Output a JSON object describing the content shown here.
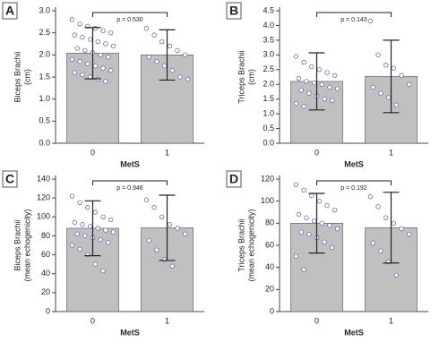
{
  "chart_data": [
    {
      "type": "bar",
      "panel": "A",
      "ylabel": [
        "Biceps Brachii",
        "(cm)"
      ],
      "xlabel": "MetS",
      "categories": [
        "0",
        "1"
      ],
      "values": [
        2.04,
        2.0
      ],
      "errors": [
        0.58,
        0.57
      ],
      "color": "#c0c0c0",
      "annotation": "p = 0.530",
      "points": [
        [
          2.8,
          2.7,
          2.65,
          2.6,
          2.55,
          2.5,
          2.45,
          2.4,
          2.35,
          2.3,
          2.25,
          2.2,
          2.15,
          2.1,
          2.05,
          2.0,
          1.95,
          1.9,
          1.85,
          1.8,
          1.75,
          1.7,
          1.65,
          1.6,
          1.55,
          1.5,
          1.45,
          1.4
        ],
        [
          2.6,
          2.45,
          2.3,
          2.2,
          2.1,
          2.0,
          1.95,
          1.85,
          1.75,
          1.65,
          1.5,
          1.45
        ]
      ],
      "ylim": [
        0,
        3.0
      ],
      "yticks": [
        {
          "value": 0,
          "label": "0.0"
        },
        {
          "value": 0.5,
          "label": "0.5"
        },
        {
          "value": 1,
          "label": "1.0"
        },
        {
          "value": 1.5,
          "label": "1.5"
        },
        {
          "value": 2,
          "label": "2.0"
        },
        {
          "value": 2.5,
          "label": "2.5"
        },
        {
          "value": 3,
          "label": "3.0"
        }
      ]
    },
    {
      "type": "bar",
      "panel": "B",
      "ylabel": [
        "Triceps Brachii",
        "(cm)"
      ],
      "xlabel": "MetS",
      "categories": [
        "0",
        "1"
      ],
      "values": [
        2.1,
        2.27
      ],
      "errors": [
        0.97,
        1.23
      ],
      "color": "#c0c0c0",
      "annotation": "p = 0.143",
      "points": [
        [
          2.95,
          2.75,
          2.6,
          2.5,
          2.4,
          2.3,
          2.2,
          2.1,
          2.05,
          2.0,
          1.9,
          1.85,
          1.8,
          1.7,
          1.6,
          1.5,
          1.45,
          1.35,
          1.25
        ],
        [
          4.15,
          3.0,
          2.65,
          2.55,
          2.3,
          2.0,
          1.9,
          1.7,
          1.55,
          1.3
        ]
      ],
      "ylim": [
        0,
        4.5
      ],
      "yticks": [
        {
          "value": 0,
          "label": "0.0"
        },
        {
          "value": 0.5,
          "label": "0.5"
        },
        {
          "value": 1,
          "label": "1.0"
        },
        {
          "value": 1.5,
          "label": "1.5"
        },
        {
          "value": 2,
          "label": "2.0"
        },
        {
          "value": 2.5,
          "label": "2.5"
        },
        {
          "value": 3,
          "label": "3.0"
        },
        {
          "value": 3.5,
          "label": "3.5"
        },
        {
          "value": 4,
          "label": "4.0"
        },
        {
          "value": 4.5,
          "label": "4.5"
        }
      ]
    },
    {
      "type": "bar",
      "panel": "C",
      "ylabel": [
        "Biceps Brachii",
        "(mean echogenicity)"
      ],
      "xlabel": "MetS",
      "categories": [
        "0",
        "1"
      ],
      "values": [
        88,
        88.5
      ],
      "errors": [
        29,
        34.5
      ],
      "color": "#c0c0c0",
      "annotation": "p = 0.946",
      "points": [
        [
          122,
          115,
          110,
          105,
          100,
          97,
          94,
          92,
          90,
          88,
          86,
          84,
          82,
          80,
          78,
          76,
          73,
          70,
          66,
          60,
          50,
          43
        ],
        [
          118,
          110,
          100,
          92,
          88,
          82,
          75,
          65,
          55,
          48
        ]
      ],
      "ylim": [
        0,
        140
      ],
      "yticks": [
        0,
        20,
        40,
        60,
        80,
        100,
        120,
        140
      ]
    },
    {
      "type": "bar",
      "panel": "D",
      "ylabel": [
        "Triceps Brachii",
        "(mean echogenicity)"
      ],
      "xlabel": "MetS",
      "categories": [
        "0",
        "1"
      ],
      "values": [
        80,
        76
      ],
      "errors": [
        27,
        32
      ],
      "color": "#c0c0c0",
      "annotation": "p = 0.192",
      "points": [
        [
          115,
          110,
          105,
          100,
          96,
          92,
          88,
          85,
          82,
          80,
          78,
          75,
          72,
          70,
          67,
          63,
          58,
          50,
          38
        ],
        [
          104,
          95,
          85,
          80,
          75,
          70,
          62,
          55,
          45,
          33
        ]
      ],
      "ylim": [
        0,
        120
      ],
      "yticks": [
        0,
        20,
        40,
        60,
        80,
        100,
        120
      ]
    }
  ]
}
